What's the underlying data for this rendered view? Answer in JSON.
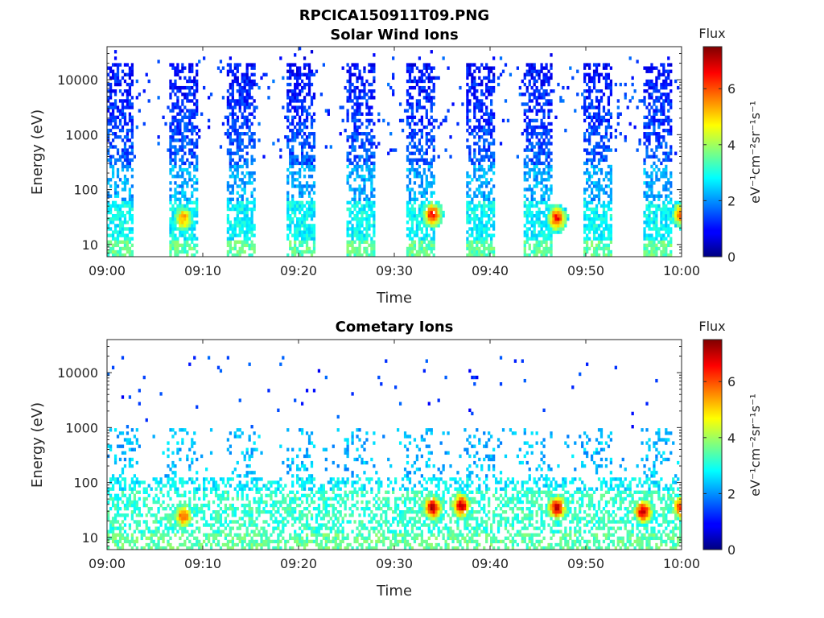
{
  "figure_title": "RPCICA150911T09.PNG",
  "colormap": "jet",
  "colors": {
    "axis": "#262626",
    "background": "#ffffff"
  },
  "chart_data": [
    {
      "type": "heatmap",
      "title": "Solar Wind Ions",
      "xlabel": "Time",
      "ylabel": "Energy (eV)",
      "x_ticks": [
        "09:00",
        "09:10",
        "09:20",
        "09:30",
        "09:40",
        "09:50",
        "10:00"
      ],
      "xlim": [
        "09:00",
        "10:00"
      ],
      "y_ticks": [
        "10",
        "100",
        "1000",
        "10000"
      ],
      "y_scale": "log",
      "ylim": [
        6,
        40000
      ],
      "colorbar": {
        "label": "Flux",
        "units": "eV⁻¹cm⁻²sr⁻¹s⁻¹",
        "ticks": [
          "0",
          "2",
          "4",
          "6"
        ],
        "range": [
          0,
          7.5
        ]
      },
      "sweep_intervals_min": [
        [
          0.0,
          2.8
        ],
        [
          6.4,
          9.4
        ],
        [
          12.6,
          15.6
        ],
        [
          18.8,
          21.8
        ],
        [
          25.0,
          28.0
        ],
        [
          31.2,
          34.2
        ],
        [
          37.4,
          40.4
        ],
        [
          43.6,
          46.6
        ],
        [
          49.8,
          52.8
        ],
        [
          56.0,
          59.0
        ]
      ],
      "peaks": [
        {
          "time": "09:08",
          "energy_eV": 30,
          "flux": 5.5
        },
        {
          "time": "09:34",
          "energy_eV": 35,
          "flux": 6.5
        },
        {
          "time": "09:47",
          "energy_eV": 30,
          "flux": 6.5
        },
        {
          "time": "10:00",
          "energy_eV": 35,
          "flux": 6.0
        }
      ]
    },
    {
      "type": "heatmap",
      "title": "Cometary Ions",
      "xlabel": "Time",
      "ylabel": "Energy (eV)",
      "x_ticks": [
        "09:00",
        "09:10",
        "09:20",
        "09:30",
        "09:40",
        "09:50",
        "10:00"
      ],
      "xlim": [
        "09:00",
        "10:00"
      ],
      "y_ticks": [
        "10",
        "100",
        "1000",
        "10000"
      ],
      "y_scale": "log",
      "ylim": [
        6,
        40000
      ],
      "colorbar": {
        "label": "Flux",
        "units": "eV⁻¹cm⁻²sr⁻¹s⁻¹",
        "ticks": [
          "0",
          "2",
          "4",
          "6"
        ],
        "range": [
          0,
          7.5
        ]
      },
      "peaks": [
        {
          "time": "09:08",
          "energy_eV": 25,
          "flux": 6.0
        },
        {
          "time": "09:34",
          "energy_eV": 35,
          "flux": 7.0
        },
        {
          "time": "09:37",
          "energy_eV": 38,
          "flux": 7.0
        },
        {
          "time": "09:47",
          "energy_eV": 35,
          "flux": 7.0
        },
        {
          "time": "09:56",
          "energy_eV": 30,
          "flux": 7.0
        },
        {
          "time": "10:00",
          "energy_eV": 35,
          "flux": 6.5
        }
      ]
    }
  ]
}
